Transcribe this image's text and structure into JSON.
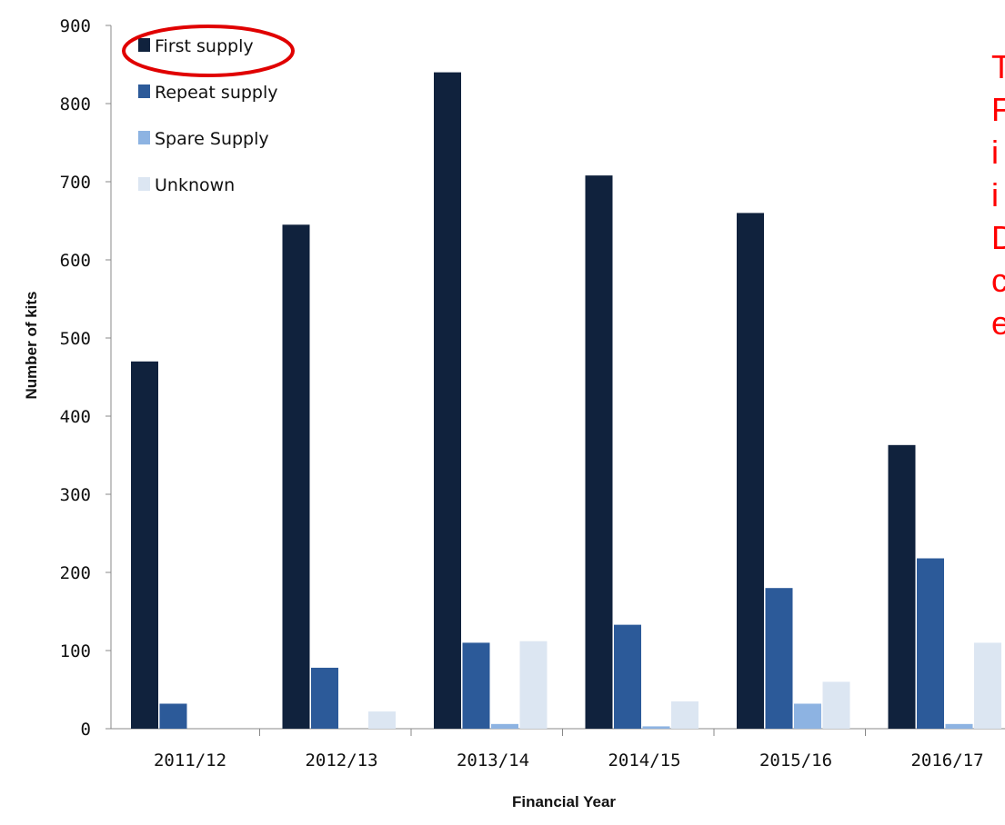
{
  "chart_data": {
    "type": "bar",
    "xlabel": "Financial Year",
    "ylabel": "Number of kits",
    "ylim": [
      0,
      900
    ],
    "yticks": [
      "0",
      "100",
      "200",
      "300",
      "400",
      "500",
      "600",
      "700",
      "800",
      "900"
    ],
    "categories": [
      "2011/12",
      "2012/13",
      "2013/14",
      "2014/15",
      "2015/16",
      "2016/17"
    ],
    "series": [
      {
        "name": "First supply",
        "color": "#10223d",
        "values": [
          470,
          645,
          840,
          708,
          660,
          363
        ]
      },
      {
        "name": "Repeat supply",
        "color": "#2c5a99",
        "values": [
          32,
          78,
          110,
          133,
          180,
          218
        ]
      },
      {
        "name": "Spare Supply",
        "color": "#8db3e2",
        "values": [
          0,
          0,
          6,
          3,
          32,
          6
        ]
      },
      {
        "name": "Unknown",
        "color": "#dce6f2",
        "values": [
          0,
          22,
          112,
          35,
          60,
          110
        ]
      }
    ],
    "grid": false,
    "legend_position": "top-left",
    "highlight": {
      "target": "First supply",
      "shape": "ellipse",
      "color": "#e00000"
    }
  },
  "side_note": {
    "color": "#ff0000",
    "lines": [
      "T",
      "F",
      "i",
      "i",
      "D",
      "c",
      "e"
    ]
  }
}
